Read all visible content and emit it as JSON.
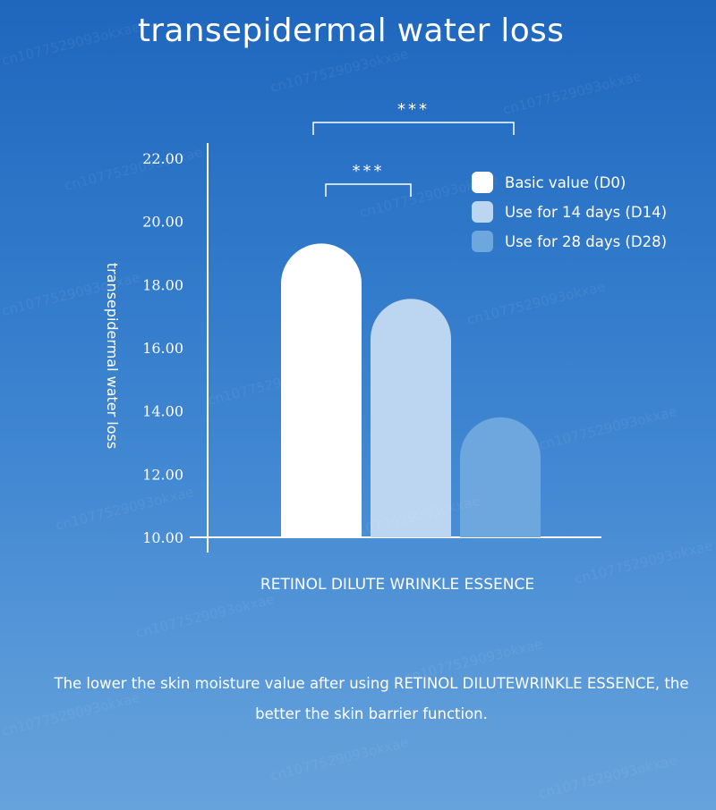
{
  "title": "transepidermal water loss",
  "footnote": "The lower the skin moisture value after using RETINOL DILUTEWRINKLE ESSENCE, the better the skin barrier function.",
  "watermark_text": "cn1077529093okxae",
  "chart_data": {
    "type": "bar",
    "title": "",
    "xlabel": "RETINOL DILUTE WRINKLE ESSENCE",
    "ylabel": "transepidermal water loss",
    "ylim": [
      10,
      22
    ],
    "yticks": [
      "10.00",
      "12.00",
      "14.00",
      "16.00",
      "18.00",
      "20.00",
      "22.00"
    ],
    "grid": false,
    "legend_position": "top-right",
    "series": [
      {
        "name": "Basic value (D0)",
        "value": 19.3,
        "color": "#ffffff"
      },
      {
        "name": "Use for 14 days (D14)",
        "value": 17.55,
        "color": "#bcd6f1"
      },
      {
        "name": "Use for 28 days (D28)",
        "value": 13.8,
        "color": "#6ea6de"
      }
    ],
    "significance": [
      {
        "from": 0,
        "to": 1,
        "label": "***"
      },
      {
        "from": 0,
        "to": 2,
        "label": "***"
      }
    ]
  }
}
